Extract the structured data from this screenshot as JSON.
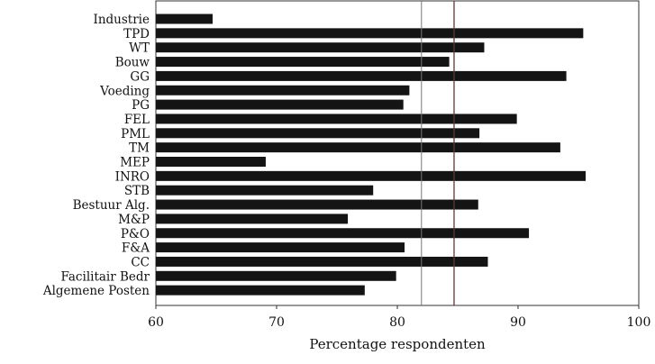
{
  "chart_data": {
    "type": "bar",
    "orientation": "horizontal",
    "categories": [
      "Industrie",
      "TPD",
      "WT",
      "Bouw",
      "GG",
      "Voeding",
      "PG",
      "FEL",
      "PML",
      "TM",
      "MEP",
      "INRO",
      "STB",
      "Bestuur Alg.",
      "M&P",
      "P&O",
      "F&A",
      "CC",
      "Facilitair Bedr",
      "Algemene Posten"
    ],
    "values": [
      64.7,
      95.4,
      87.2,
      84.3,
      94.0,
      81.0,
      80.5,
      89.9,
      86.8,
      93.5,
      69.1,
      95.6,
      78.0,
      86.7,
      75.9,
      90.9,
      80.6,
      87.5,
      79.9,
      77.3
    ],
    "xlim": [
      60,
      100
    ],
    "xticks": [
      "60",
      "70",
      "80",
      "90",
      "100"
    ],
    "xlabel": "Percentage respondenten",
    "ylabel": "",
    "title": "",
    "reference_lines": [
      82.0,
      84.7
    ],
    "bar_color": "#141414",
    "grid": false
  }
}
